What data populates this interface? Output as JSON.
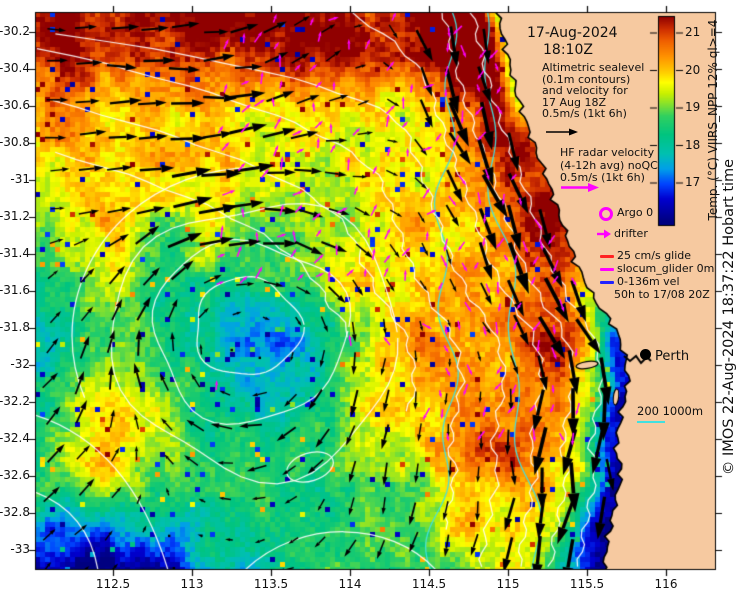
{
  "header": {
    "date": "17-Aug-2024",
    "time": "18:10Z"
  },
  "annotations": {
    "altimetry_lines": [
      "Altimetric sealevel",
      "(0.1m contours)",
      "and velocity for",
      "17 Aug 18Z",
      "0.5m/s (1kt 6h)"
    ],
    "hf_lines": [
      "HF radar velocity",
      "(4-12h avg) noQC",
      "0.5m/s (1kt 6h)"
    ]
  },
  "legend": {
    "argo": "Argo 0",
    "drifter": "drifter",
    "glide": "25 cm/s glide",
    "slocum": "slocum_glider 0m",
    "vel_depth": "0-136m vel",
    "vel_window": "50h to 17/08 20Z",
    "isobaths": "200 1000m"
  },
  "map_labels": {
    "city": "Perth"
  },
  "axes": {
    "x_ticks": [
      112.5,
      113,
      113.5,
      114,
      114.5,
      115,
      115.5,
      116
    ],
    "x_labels": [
      "112.5",
      "113",
      "113.5",
      "114",
      "114.5",
      "115",
      "115.5",
      "116"
    ],
    "y_ticks": [
      -30.2,
      -30.4,
      -30.6,
      -30.8,
      -31,
      -31.2,
      -31.4,
      -31.6,
      -31.8,
      -32,
      -32.2,
      -32.4,
      -32.6,
      -32.8,
      -33
    ],
    "y_labels": [
      "-30.2",
      "-30.4",
      "-30.6",
      "-30.8",
      "-31",
      "-31.2",
      "-31.4",
      "-31.6",
      "-31.8",
      "-32",
      "-32.2",
      "-32.4",
      "-32.6",
      "-32.8",
      "-33"
    ]
  },
  "colorbar": {
    "title": "Temp. (°C) VIIRS_NPP 12% ql>=4",
    "ticks": [
      21,
      20,
      19,
      18,
      17
    ],
    "labels": [
      "21",
      "20",
      "19",
      "18",
      "17"
    ]
  },
  "credit": "© IMOS 22-Aug-2024 18:37:22 Hobart time",
  "colors": {
    "land": "#f6c9a0",
    "contour": "#ffffff",
    "bathymetry": "#40e0e0",
    "hf_radar": "#ff00ff",
    "velocity": "#000000",
    "glider_red": "#ff2222",
    "glider_magenta": "#ff00ff",
    "glider_blue": "#2222ff",
    "argo": "#ff00ff",
    "marker": "#000000"
  },
  "chart_data": {
    "type": "heatmap",
    "title": "Sea surface temperature with altimetric sealevel contours and velocity, 17-Aug-2024 18:10Z",
    "x_axis": {
      "ticks": [
        112.5,
        113,
        113.5,
        114,
        114.5,
        115,
        115.5,
        116
      ],
      "range": [
        112.0,
        116.3
      ]
    },
    "y_axis": {
      "ticks": [
        -30.2,
        -30.4,
        -30.6,
        -30.8,
        -31,
        -31.2,
        -31.4,
        -31.6,
        -31.8,
        -32,
        -32.2,
        -32.4,
        -32.6,
        -32.8,
        -33
      ],
      "range": [
        -33.1,
        -30.1
      ]
    },
    "colorbar": {
      "label": "Temp. (°C) VIIRS_NPP 12% ql>=4",
      "ticks": [
        21,
        20,
        19,
        18,
        17
      ],
      "range_estimate": [
        16,
        21.4
      ],
      "units": "°C"
    },
    "contour_interval_m": 0.1,
    "velocity_scale": "0.5m/s (1kt 6h)",
    "isobath_labels_m": [
      200,
      1000
    ],
    "city_marker": "Perth"
  }
}
